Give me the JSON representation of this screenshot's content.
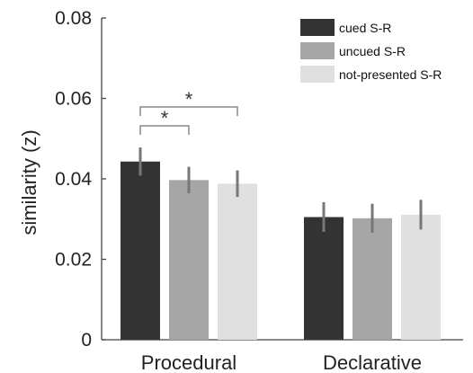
{
  "chart_data": {
    "type": "bar",
    "categories": [
      "Procedural",
      "Declarative"
    ],
    "series": [
      {
        "name": "cued S-R",
        "color": "#333333",
        "values": [
          0.0443,
          0.0305
        ],
        "error": [
          0.0035,
          0.0037
        ]
      },
      {
        "name": "uncued S-R",
        "color": "#a6a6a6",
        "values": [
          0.0397,
          0.0302
        ],
        "error": [
          0.0033,
          0.0036
        ]
      },
      {
        "name": "not-presented S-R",
        "color": "#e0e0e0",
        "values": [
          0.0388,
          0.0311
        ],
        "error": [
          0.0033,
          0.0037
        ]
      }
    ],
    "xlabel": "",
    "ylabel": "similarity (z)",
    "ylim": [
      0,
      0.08
    ],
    "yticks": [
      0,
      0.02,
      0.04,
      0.06,
      0.08
    ],
    "ytick_labels": [
      "0",
      "0.02",
      "0.04",
      "0.06",
      "0.08"
    ],
    "grid": false,
    "legend_position": "top-right",
    "significance": [
      {
        "category": "Procedural",
        "from_series": "cued S-R",
        "to_series": "uncued S-R",
        "label": "*"
      },
      {
        "category": "Procedural",
        "from_series": "cued S-R",
        "to_series": "not-presented S-R",
        "label": "*"
      }
    ],
    "error_bar_color": "#777777"
  }
}
